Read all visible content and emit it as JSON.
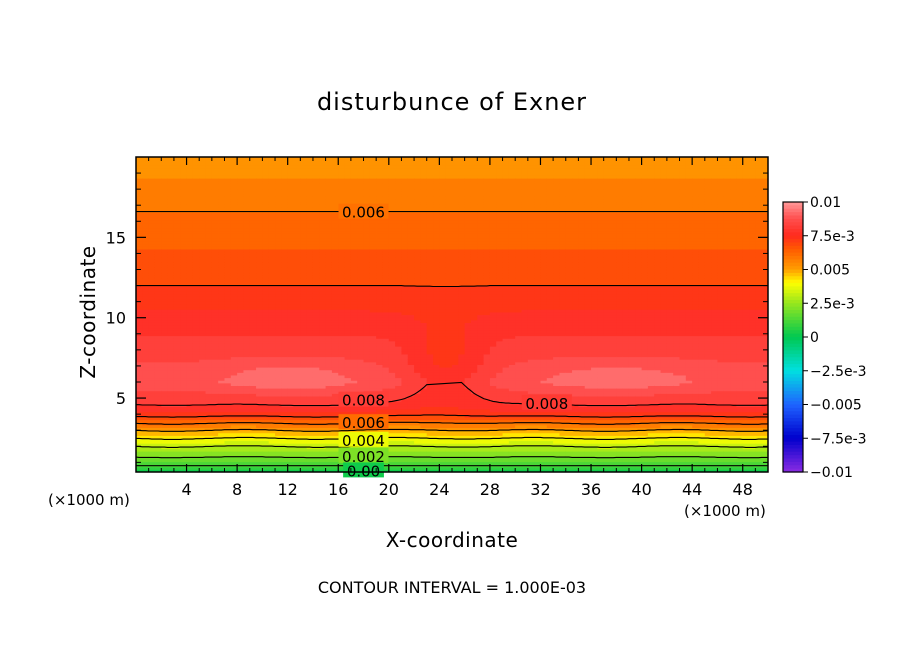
{
  "chart_data": {
    "type": "heatmap",
    "title": "disturbunce of Exner",
    "xlabel": "X-coordinate",
    "ylabel": "Z-coordinate",
    "x_unit_left": "(×1000 m)",
    "x_unit_right": "(×1000 m)",
    "footnote": "CONTOUR INTERVAL = 1.000E-03",
    "xlim": [
      0,
      50
    ],
    "ylim": [
      0.4,
      20
    ],
    "xticks": [
      "4",
      "8",
      "12",
      "16",
      "20",
      "24",
      "28",
      "32",
      "36",
      "40",
      "44",
      "48"
    ],
    "yticks": [
      "5",
      "10",
      "15"
    ],
    "colorbar_ticks": [
      "0.01",
      "7.5e-3",
      "0.005",
      "2.5e-3",
      "0",
      "−2.5e-3",
      "−0.005",
      "−7.5e-3",
      "−0.01"
    ],
    "colorbar_range": [
      -0.01,
      0.01
    ],
    "contour_interval": 0.001,
    "contour_labels": [
      {
        "text": "0.006",
        "x": 18,
        "z": 16.6
      },
      {
        "text": "0.008",
        "x": 18,
        "z": 4.9
      },
      {
        "text": "0.008",
        "x": 32.5,
        "z": 4.7
      },
      {
        "text": "0.006",
        "x": 18,
        "z": 3.5
      },
      {
        "text": "0.004",
        "x": 18,
        "z": 2.4
      },
      {
        "text": "0.002",
        "x": 18,
        "z": 1.4
      },
      {
        "text": "0.00",
        "x": 18,
        "z": 0.5
      }
    ],
    "vertical_profile": {
      "z": [
        0.4,
        1.0,
        2.0,
        3.0,
        4.0,
        4.6,
        6.0,
        8.0,
        12.0,
        16.6,
        20.0
      ],
      "value": [
        0.0,
        0.0015,
        0.003,
        0.005,
        0.0073,
        0.008,
        0.0088,
        0.0083,
        0.007,
        0.006,
        0.0052
      ]
    },
    "colors": {
      "levels": [
        {
          "v": -0.01,
          "c": "#8a2be2"
        },
        {
          "v": -0.0075,
          "c": "#0000cd"
        },
        {
          "v": -0.005,
          "c": "#1e64ff"
        },
        {
          "v": -0.0025,
          "c": "#00e0e0"
        },
        {
          "v": 0,
          "c": "#00c850"
        },
        {
          "v": 0.0025,
          "c": "#96e61e"
        },
        {
          "v": 0.004,
          "c": "#ffff00"
        },
        {
          "v": 0.005,
          "c": "#ff9e00"
        },
        {
          "v": 0.0065,
          "c": "#ff5a00"
        },
        {
          "v": 0.0075,
          "c": "#ff2a1e"
        },
        {
          "v": 0.0088,
          "c": "#ff5050"
        },
        {
          "v": 0.01,
          "c": "#ff9a9a"
        }
      ]
    }
  }
}
